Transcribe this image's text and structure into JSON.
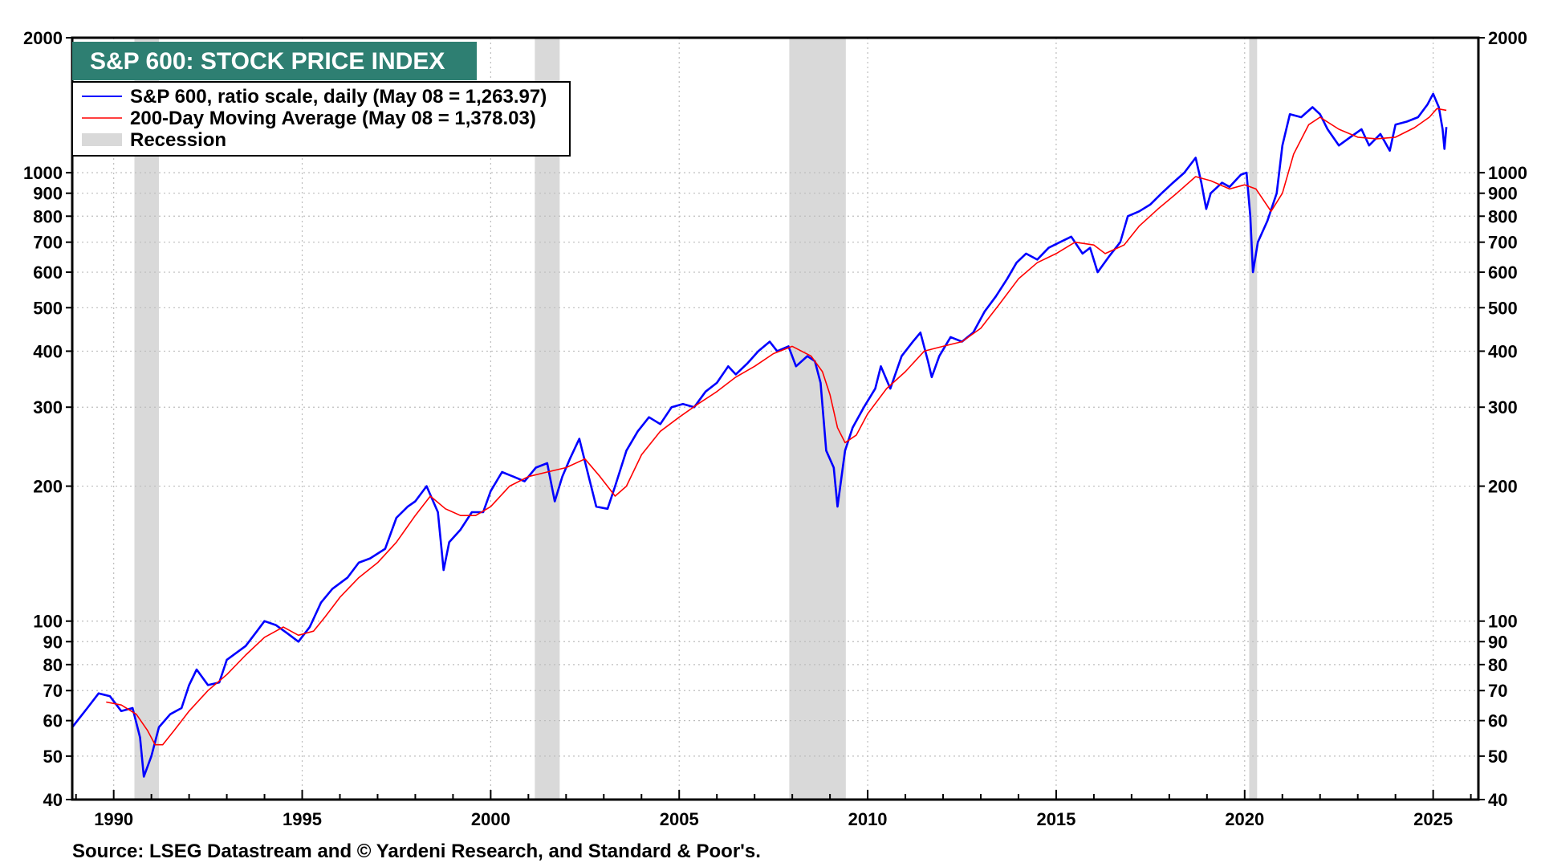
{
  "chart_data": {
    "type": "line",
    "title": "S&P 600: STOCK PRICE INDEX",
    "y_scale": "log",
    "ylim": [
      40,
      2000
    ],
    "y_ticks": [
      40,
      50,
      60,
      70,
      80,
      90,
      100,
      200,
      300,
      400,
      500,
      600,
      700,
      800,
      900,
      1000,
      2000
    ],
    "y_tick_labels": [
      "40",
      "50",
      "60",
      "70",
      "80",
      "90",
      "100",
      "200",
      "300",
      "400",
      "500",
      "600",
      "700",
      "800",
      "900",
      "1000",
      "2000"
    ],
    "xlim": [
      1988.9,
      2026.2
    ],
    "x_ticks": [
      1990,
      1995,
      2000,
      2005,
      2010,
      2015,
      2020,
      2025
    ],
    "x_tick_labels": [
      "1990",
      "1995",
      "2000",
      "2005",
      "2010",
      "2015",
      "2020",
      "2025"
    ],
    "grid": true,
    "legend_position": "top-left",
    "source": "Source: LSEG Datastream and © Yardeni Research, and Standard & Poor's.",
    "recessions": [
      {
        "start": 1990.55,
        "end": 1991.2
      },
      {
        "start": 2001.17,
        "end": 2001.83
      },
      {
        "start": 2007.92,
        "end": 2009.42
      },
      {
        "start": 2020.12,
        "end": 2020.33
      }
    ],
    "legend": [
      {
        "label": "S&P 600, ratio scale, daily (May 08 = 1,263.97)",
        "color": "#0000ff"
      },
      {
        "label": "200-Day Moving Average (May 08 = 1,378.03)",
        "color": "#ff0000"
      },
      {
        "label": "Recession",
        "color": "#d9d9d9"
      }
    ],
    "series": [
      {
        "name": "S&P 600, ratio scale, daily (May 08 = 1,263.97)",
        "color": "#0000ff",
        "points": [
          [
            1988.9,
            58
          ],
          [
            1989.3,
            64
          ],
          [
            1989.6,
            69
          ],
          [
            1989.9,
            68
          ],
          [
            1990.2,
            63
          ],
          [
            1990.5,
            64
          ],
          [
            1990.7,
            55
          ],
          [
            1990.8,
            45
          ],
          [
            1991.0,
            50
          ],
          [
            1991.2,
            58
          ],
          [
            1991.5,
            62
          ],
          [
            1991.8,
            64
          ],
          [
            1992.0,
            72
          ],
          [
            1992.2,
            78
          ],
          [
            1992.5,
            72
          ],
          [
            1992.8,
            73
          ],
          [
            1993.0,
            82
          ],
          [
            1993.5,
            88
          ],
          [
            1993.8,
            95
          ],
          [
            1994.0,
            100
          ],
          [
            1994.3,
            98
          ],
          [
            1994.6,
            94
          ],
          [
            1994.9,
            90
          ],
          [
            1995.2,
            97
          ],
          [
            1995.5,
            110
          ],
          [
            1995.8,
            118
          ],
          [
            1996.2,
            125
          ],
          [
            1996.5,
            135
          ],
          [
            1996.8,
            138
          ],
          [
            1997.2,
            145
          ],
          [
            1997.5,
            170
          ],
          [
            1997.8,
            180
          ],
          [
            1998.0,
            185
          ],
          [
            1998.3,
            200
          ],
          [
            1998.6,
            175
          ],
          [
            1998.75,
            130
          ],
          [
            1998.9,
            150
          ],
          [
            1999.2,
            160
          ],
          [
            1999.5,
            175
          ],
          [
            1999.8,
            175
          ],
          [
            2000.0,
            195
          ],
          [
            2000.3,
            215
          ],
          [
            2000.6,
            210
          ],
          [
            2000.9,
            205
          ],
          [
            2001.2,
            220
          ],
          [
            2001.5,
            225
          ],
          [
            2001.7,
            185
          ],
          [
            2001.9,
            210
          ],
          [
            2002.1,
            230
          ],
          [
            2002.35,
            255
          ],
          [
            2002.6,
            210
          ],
          [
            2002.8,
            180
          ],
          [
            2003.1,
            178
          ],
          [
            2003.3,
            200
          ],
          [
            2003.6,
            240
          ],
          [
            2003.9,
            265
          ],
          [
            2004.2,
            285
          ],
          [
            2004.5,
            275
          ],
          [
            2004.8,
            300
          ],
          [
            2005.1,
            305
          ],
          [
            2005.4,
            300
          ],
          [
            2005.7,
            325
          ],
          [
            2006.0,
            340
          ],
          [
            2006.3,
            370
          ],
          [
            2006.5,
            355
          ],
          [
            2006.8,
            375
          ],
          [
            2007.1,
            400
          ],
          [
            2007.4,
            420
          ],
          [
            2007.6,
            400
          ],
          [
            2007.9,
            410
          ],
          [
            2008.1,
            370
          ],
          [
            2008.4,
            390
          ],
          [
            2008.6,
            380
          ],
          [
            2008.75,
            340
          ],
          [
            2008.9,
            240
          ],
          [
            2009.1,
            220
          ],
          [
            2009.2,
            180
          ],
          [
            2009.4,
            240
          ],
          [
            2009.6,
            270
          ],
          [
            2009.9,
            300
          ],
          [
            2010.2,
            330
          ],
          [
            2010.35,
            370
          ],
          [
            2010.6,
            330
          ],
          [
            2010.9,
            390
          ],
          [
            2011.2,
            420
          ],
          [
            2011.4,
            440
          ],
          [
            2011.6,
            380
          ],
          [
            2011.7,
            350
          ],
          [
            2011.9,
            390
          ],
          [
            2012.2,
            430
          ],
          [
            2012.5,
            420
          ],
          [
            2012.8,
            440
          ],
          [
            2013.1,
            490
          ],
          [
            2013.4,
            530
          ],
          [
            2013.7,
            580
          ],
          [
            2013.95,
            630
          ],
          [
            2014.2,
            660
          ],
          [
            2014.5,
            640
          ],
          [
            2014.8,
            680
          ],
          [
            2015.1,
            700
          ],
          [
            2015.4,
            720
          ],
          [
            2015.7,
            660
          ],
          [
            2015.9,
            680
          ],
          [
            2016.1,
            600
          ],
          [
            2016.4,
            650
          ],
          [
            2016.7,
            700
          ],
          [
            2016.9,
            800
          ],
          [
            2017.2,
            820
          ],
          [
            2017.5,
            850
          ],
          [
            2017.8,
            900
          ],
          [
            2018.1,
            950
          ],
          [
            2018.4,
            1000
          ],
          [
            2018.7,
            1080
          ],
          [
            2018.85,
            950
          ],
          [
            2018.98,
            830
          ],
          [
            2019.1,
            900
          ],
          [
            2019.4,
            950
          ],
          [
            2019.6,
            930
          ],
          [
            2019.9,
            990
          ],
          [
            2020.05,
            1000
          ],
          [
            2020.15,
            800
          ],
          [
            2020.22,
            600
          ],
          [
            2020.35,
            700
          ],
          [
            2020.6,
            780
          ],
          [
            2020.85,
            900
          ],
          [
            2021.0,
            1150
          ],
          [
            2021.2,
            1350
          ],
          [
            2021.5,
            1330
          ],
          [
            2021.8,
            1400
          ],
          [
            2022.0,
            1350
          ],
          [
            2022.2,
            1250
          ],
          [
            2022.5,
            1150
          ],
          [
            2022.8,
            1200
          ],
          [
            2023.1,
            1250
          ],
          [
            2023.3,
            1150
          ],
          [
            2023.6,
            1220
          ],
          [
            2023.85,
            1120
          ],
          [
            2024.0,
            1280
          ],
          [
            2024.3,
            1300
          ],
          [
            2024.6,
            1330
          ],
          [
            2024.85,
            1420
          ],
          [
            2025.0,
            1500
          ],
          [
            2025.15,
            1400
          ],
          [
            2025.25,
            1250
          ],
          [
            2025.3,
            1130
          ],
          [
            2025.35,
            1264
          ]
        ]
      },
      {
        "name": "200-Day Moving Average (May 08 = 1,378.03)",
        "color": "#ff0000",
        "points": [
          [
            1989.8,
            66
          ],
          [
            1990.2,
            65
          ],
          [
            1990.6,
            62
          ],
          [
            1990.9,
            57
          ],
          [
            1991.1,
            53
          ],
          [
            1991.3,
            53
          ],
          [
            1991.6,
            57
          ],
          [
            1992.0,
            63
          ],
          [
            1992.5,
            70
          ],
          [
            1993.0,
            76
          ],
          [
            1993.5,
            84
          ],
          [
            1994.0,
            92
          ],
          [
            1994.5,
            97
          ],
          [
            1994.9,
            93
          ],
          [
            1995.3,
            95
          ],
          [
            1995.6,
            102
          ],
          [
            1996.0,
            113
          ],
          [
            1996.5,
            125
          ],
          [
            1997.0,
            135
          ],
          [
            1997.5,
            150
          ],
          [
            1998.0,
            172
          ],
          [
            1998.4,
            190
          ],
          [
            1998.8,
            178
          ],
          [
            1999.2,
            172
          ],
          [
            1999.6,
            172
          ],
          [
            2000.0,
            180
          ],
          [
            2000.5,
            200
          ],
          [
            2001.0,
            210
          ],
          [
            2001.5,
            215
          ],
          [
            2002.0,
            220
          ],
          [
            2002.5,
            230
          ],
          [
            2002.9,
            210
          ],
          [
            2003.3,
            190
          ],
          [
            2003.6,
            200
          ],
          [
            2004.0,
            235
          ],
          [
            2004.5,
            265
          ],
          [
            2005.0,
            285
          ],
          [
            2005.5,
            305
          ],
          [
            2006.0,
            325
          ],
          [
            2006.5,
            350
          ],
          [
            2007.0,
            370
          ],
          [
            2007.5,
            395
          ],
          [
            2008.0,
            410
          ],
          [
            2008.5,
            390
          ],
          [
            2008.8,
            360
          ],
          [
            2009.0,
            320
          ],
          [
            2009.2,
            270
          ],
          [
            2009.4,
            250
          ],
          [
            2009.7,
            260
          ],
          [
            2010.0,
            290
          ],
          [
            2010.5,
            330
          ],
          [
            2011.0,
            360
          ],
          [
            2011.5,
            400
          ],
          [
            2012.0,
            410
          ],
          [
            2012.5,
            420
          ],
          [
            2013.0,
            450
          ],
          [
            2013.5,
            510
          ],
          [
            2014.0,
            580
          ],
          [
            2014.5,
            630
          ],
          [
            2015.0,
            660
          ],
          [
            2015.5,
            700
          ],
          [
            2016.0,
            690
          ],
          [
            2016.3,
            660
          ],
          [
            2016.8,
            690
          ],
          [
            2017.2,
            760
          ],
          [
            2017.7,
            830
          ],
          [
            2018.2,
            900
          ],
          [
            2018.7,
            980
          ],
          [
            2019.1,
            960
          ],
          [
            2019.6,
            920
          ],
          [
            2020.0,
            940
          ],
          [
            2020.3,
            920
          ],
          [
            2020.7,
            820
          ],
          [
            2021.0,
            900
          ],
          [
            2021.3,
            1100
          ],
          [
            2021.7,
            1280
          ],
          [
            2022.0,
            1330
          ],
          [
            2022.5,
            1250
          ],
          [
            2023.0,
            1200
          ],
          [
            2023.5,
            1190
          ],
          [
            2024.0,
            1200
          ],
          [
            2024.5,
            1260
          ],
          [
            2024.9,
            1330
          ],
          [
            2025.1,
            1390
          ],
          [
            2025.35,
            1378
          ]
        ]
      }
    ]
  }
}
